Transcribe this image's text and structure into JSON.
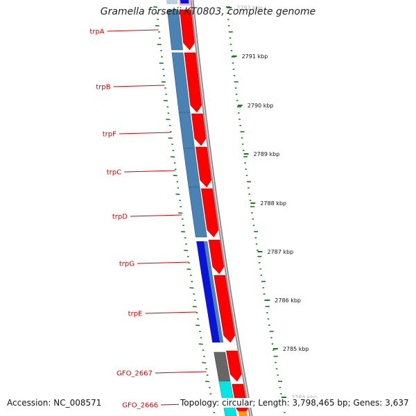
{
  "title": "Gramella forsetii KT0803, complete genome",
  "footer": {
    "accession": "Accession: NC_008571",
    "topology": "Topology: circular; Length: 3,798,465 bp; Genes: 3,637"
  },
  "colors": {
    "cds_forward": "#ff0000",
    "trp_gene_blue": "#4a82b4",
    "gene_dark_blue": "#0a14d6",
    "gfo_2667_gene": "#666666",
    "gfo_2666_gene": "#00e5e5",
    "gene_label": "#cc0000",
    "gc_skew_tick": "#1a7a1a",
    "backbone": "#8a8a8a"
  },
  "scale_labels": [
    "2792 kbp",
    "2791 kbp",
    "2790 kbp",
    "2789 kbp",
    "2788 kbp",
    "2787 kbp",
    "2786 kbp",
    "2785 kbp",
    "2784 kbp"
  ],
  "gene_labels": [
    "trpA",
    "trpB",
    "trpF",
    "trpC",
    "trpD",
    "trpG",
    "trpE",
    "GFO_2667",
    "GFO_2666"
  ]
}
